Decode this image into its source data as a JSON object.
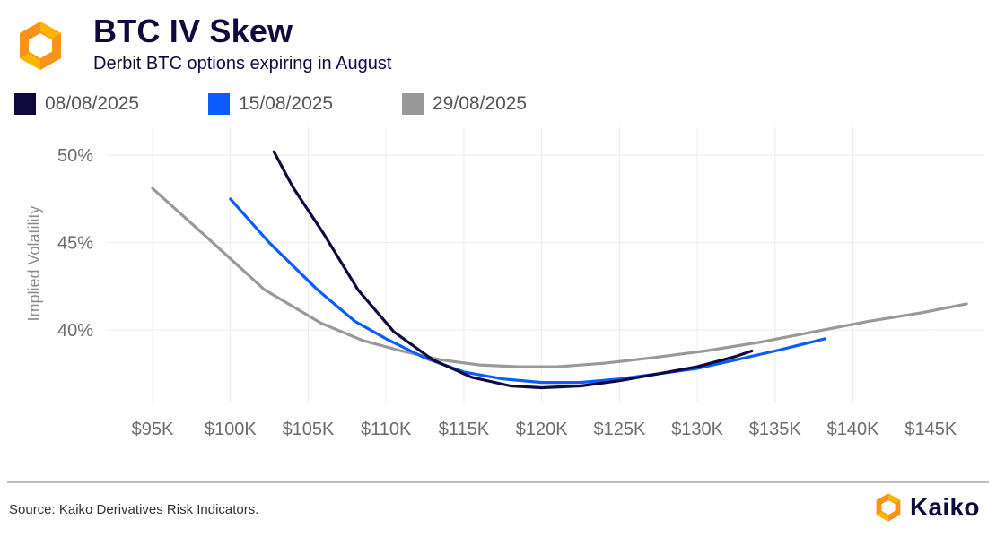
{
  "header": {
    "title": "BTC IV Skew",
    "subtitle": "Derbit BTC options expiring in August",
    "logo_icon": "kaiko-hexagon-logo"
  },
  "colors": {
    "title": "#0f0a3d",
    "logo_orange": "#f7931a",
    "logo_yellow": "#ffb400",
    "grid": "#ececec",
    "axis_text": "#6b6b6b"
  },
  "legend": [
    {
      "label": "08/08/2025",
      "color": "#0f0a3d"
    },
    {
      "label": "15/08/2025",
      "color": "#0a5cff"
    },
    {
      "label": "29/08/2025",
      "color": "#999999"
    }
  ],
  "chart_data": {
    "type": "line",
    "title": "BTC IV Skew",
    "subtitle": "Derbit BTC options expiring in August",
    "xlabel": "",
    "ylabel": "Implied Volatility",
    "x_tick_labels": [
      "$95K",
      "$100K",
      "$105K",
      "$110K",
      "$115K",
      "$120K",
      "$125K",
      "$130K",
      "$135K",
      "$140K",
      "$145K"
    ],
    "x_ticks": [
      95000,
      100000,
      105000,
      110000,
      115000,
      120000,
      125000,
      130000,
      135000,
      140000,
      145000
    ],
    "y_tick_labels": [
      "40%",
      "45%",
      "50%"
    ],
    "y_ticks": [
      40,
      45,
      50
    ],
    "xlim": [
      92000,
      148500
    ],
    "ylim": [
      35.8,
      51.6
    ],
    "grid": true,
    "legend_position": "top",
    "series": [
      {
        "name": "08/08/2025",
        "color": "#0f0a3d",
        "x": [
          102800,
          104000,
          106000,
          108200,
          110500,
          113000,
          115500,
          118000,
          120000,
          122500,
          125000,
          127500,
          130000,
          132500,
          133500
        ],
        "y": [
          50.2,
          48.2,
          45.5,
          42.3,
          39.9,
          38.3,
          37.3,
          36.8,
          36.7,
          36.8,
          37.1,
          37.5,
          37.9,
          38.5,
          38.8
        ]
      },
      {
        "name": "15/08/2025",
        "color": "#0a5cff",
        "x": [
          100000,
          102500,
          105600,
          108000,
          110000,
          112500,
          115000,
          117500,
          120000,
          122500,
          125000,
          127500,
          130000,
          132500,
          135000,
          138200
        ],
        "y": [
          47.5,
          45.0,
          42.3,
          40.5,
          39.5,
          38.4,
          37.6,
          37.2,
          37.0,
          37.0,
          37.2,
          37.5,
          37.8,
          38.3,
          38.8,
          39.5
        ]
      },
      {
        "name": "29/08/2025",
        "color": "#999999",
        "x": [
          95000,
          98500,
          102200,
          105800,
          108500,
          111000,
          113500,
          116000,
          118500,
          121000,
          124000,
          127000,
          130500,
          134000,
          137500,
          141000,
          144500,
          147300
        ],
        "y": [
          48.1,
          45.3,
          42.3,
          40.4,
          39.4,
          38.8,
          38.3,
          38.0,
          37.9,
          37.9,
          38.1,
          38.4,
          38.8,
          39.3,
          39.9,
          40.5,
          41.0,
          41.5
        ]
      }
    ]
  },
  "footer": {
    "source": "Source: Kaiko Derivatives Risk Indicators.",
    "brand_name": "Kaiko",
    "brand_icon": "kaiko-hexagon-logo"
  }
}
